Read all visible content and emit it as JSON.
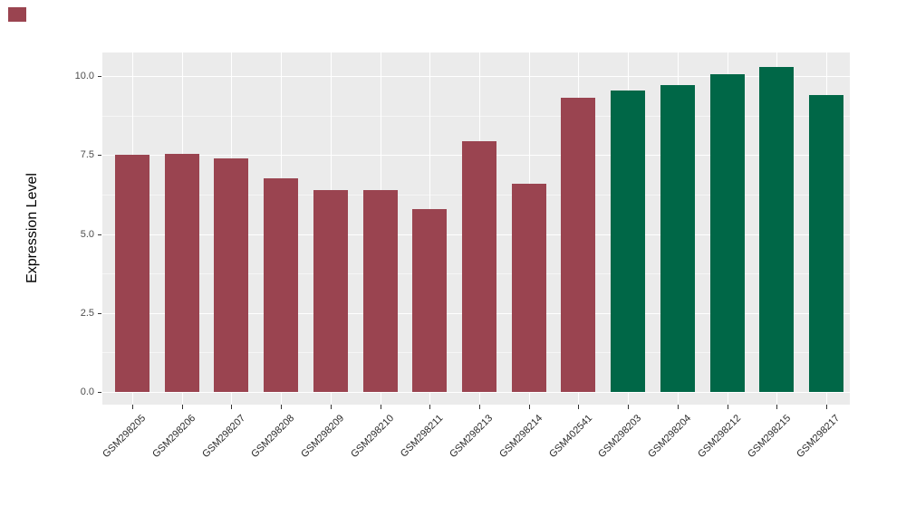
{
  "figure": {
    "background": "#FFFFFF",
    "corner_marker_color": "#9A4450"
  },
  "chart_data": {
    "type": "bar",
    "title": "",
    "xlabel": "",
    "ylabel": "Expression Level",
    "categories": [
      "GSM298205",
      "GSM298206",
      "GSM298207",
      "GSM298208",
      "GSM298209",
      "GSM298210",
      "GSM298211",
      "GSM298213",
      "GSM298214",
      "GSM402541",
      "GSM298203",
      "GSM298204",
      "GSM298212",
      "GSM298215",
      "GSM298217"
    ],
    "values": [
      7.5,
      7.55,
      7.4,
      6.75,
      6.4,
      6.4,
      5.8,
      7.95,
      6.6,
      9.3,
      9.55,
      9.7,
      10.05,
      10.3,
      9.4
    ],
    "bar_groups": [
      0,
      0,
      0,
      0,
      0,
      0,
      0,
      0,
      0,
      0,
      1,
      1,
      1,
      1,
      1
    ],
    "group_colors": [
      "#9A4450",
      "#006747"
    ],
    "ylim": [
      -0.4,
      10.75
    ],
    "yticks": [
      0,
      2.5,
      5,
      7.5,
      10
    ],
    "ytick_labels": [
      "0.0",
      "2.5",
      "5.0",
      "7.5",
      "10.0"
    ],
    "minor_yticks": [
      1.25,
      3.75,
      6.25,
      8.75
    ],
    "x_label_rotation": 45,
    "grid": true,
    "legend": "none",
    "panel_background": "#EBEBEB",
    "grid_color": "#FFFFFF",
    "tick_mark_color": "#333333",
    "tick_label_color": "#4D4D4D"
  }
}
